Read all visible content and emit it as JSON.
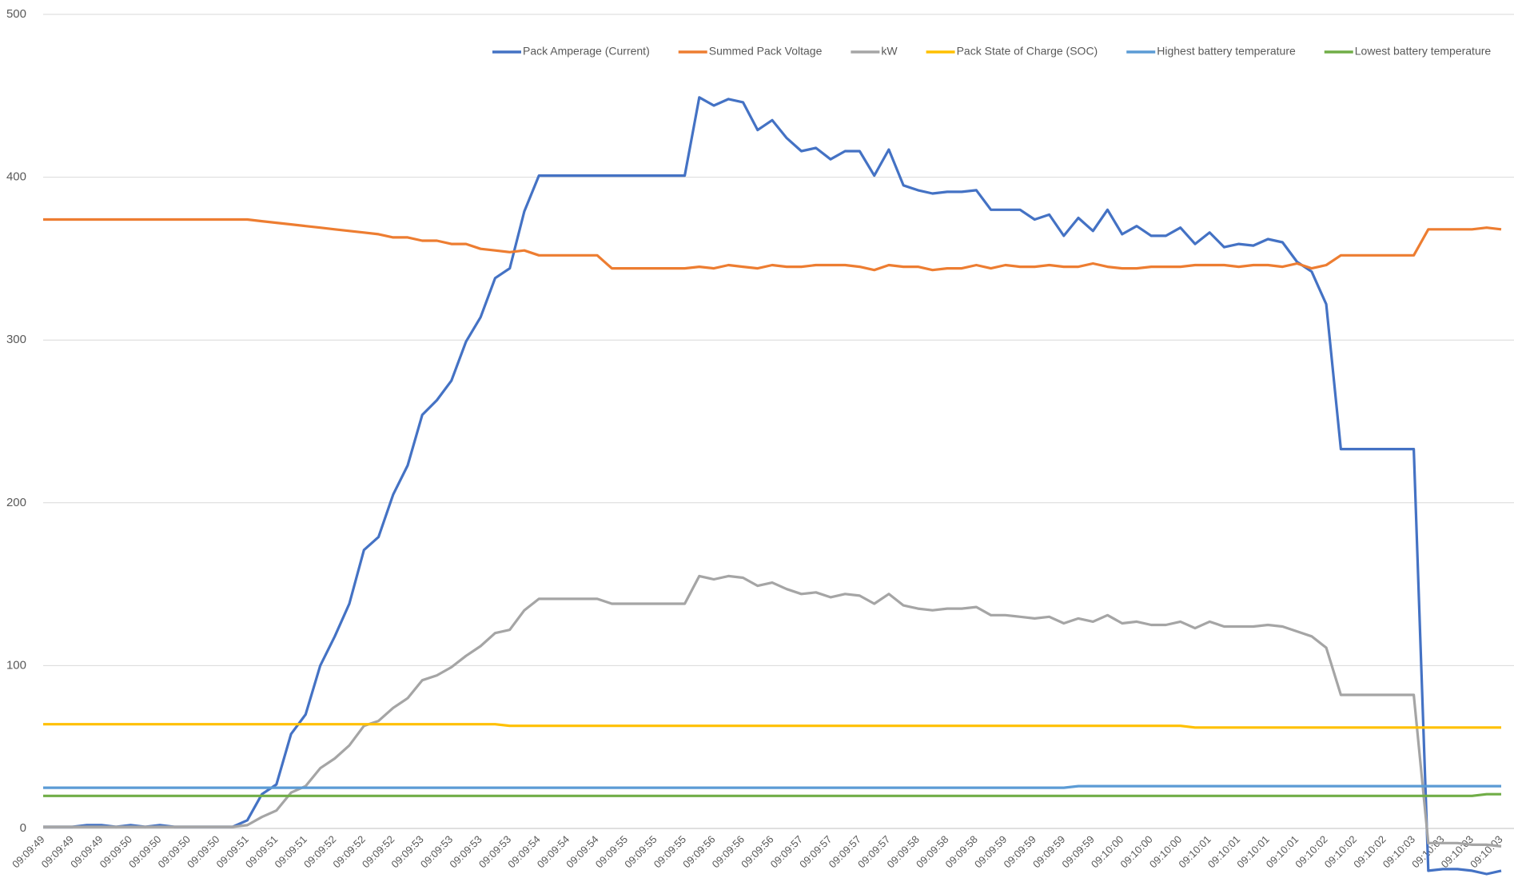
{
  "chart_data": {
    "type": "line",
    "categories": [
      "09:09:49",
      null,
      "09:09:49",
      null,
      "09:09:49",
      null,
      "09:09:50",
      null,
      "09:09:50",
      null,
      "09:09:50",
      null,
      "09:09:50",
      null,
      "09:09:51",
      null,
      "09:09:51",
      null,
      "09:09:51",
      null,
      "09:09:52",
      null,
      "09:09:52",
      null,
      "09:09:52",
      null,
      "09:09:53",
      null,
      "09:09:53",
      null,
      "09:09:53",
      null,
      "09:09:53",
      null,
      "09:09:54",
      null,
      "09:09:54",
      null,
      "09:09:54",
      null,
      "09:09:55",
      null,
      "09:09:55",
      null,
      "09:09:55",
      null,
      "09:09:56",
      null,
      "09:09:56",
      null,
      "09:09:56",
      null,
      "09:09:57",
      null,
      "09:09:57",
      null,
      "09:09:57",
      null,
      "09:09:57",
      null,
      "09:09:58",
      null,
      "09:09:58",
      null,
      "09:09:58",
      null,
      "09:09:59",
      null,
      "09:09:59",
      null,
      "09:09:59",
      null,
      "09:09:59",
      null,
      "09:10:00",
      null,
      "09:10:00",
      null,
      "09:10:00",
      null,
      "09:10:01",
      null,
      "09:10:01",
      null,
      "09:10:01",
      null,
      "09:10:01",
      null,
      "09:10:02",
      null,
      "09:10:02",
      null,
      "09:10:02",
      null,
      "09:10:03",
      null,
      "09:10:03",
      null,
      "09:10:03",
      null,
      "09:10:03"
    ],
    "series": [
      {
        "name": "Pack Amperage (Current)",
        "color": "#4472c4",
        "values": [
          1,
          1,
          1,
          2,
          2,
          1,
          2,
          1,
          2,
          1,
          1,
          1,
          1,
          1,
          5,
          21,
          27,
          58,
          70,
          100,
          118,
          138,
          171,
          179,
          205,
          223,
          254,
          263,
          275,
          299,
          314,
          338,
          344,
          379,
          401,
          401,
          401,
          401,
          401,
          401,
          401,
          401,
          401,
          401,
          401,
          449,
          444,
          448,
          446,
          429,
          435,
          424,
          416,
          418,
          411,
          416,
          416,
          401,
          417,
          395,
          392,
          390,
          391,
          391,
          392,
          380,
          380,
          380,
          374,
          377,
          364,
          375,
          367,
          380,
          365,
          370,
          364,
          364,
          369,
          359,
          366,
          357,
          359,
          358,
          362,
          360,
          348,
          342,
          322,
          233,
          233,
          233,
          233,
          233,
          233,
          -26,
          -25,
          -25,
          -26,
          -28,
          -26
        ]
      },
      {
        "name": "Summed Pack Voltage",
        "color": "#ed7d31",
        "values": [
          374,
          374,
          374,
          374,
          374,
          374,
          374,
          374,
          374,
          374,
          374,
          374,
          374,
          374,
          374,
          373,
          372,
          371,
          370,
          369,
          368,
          367,
          366,
          365,
          363,
          363,
          361,
          361,
          359,
          359,
          356,
          355,
          354,
          355,
          352,
          352,
          352,
          352,
          352,
          344,
          344,
          344,
          344,
          344,
          344,
          345,
          344,
          346,
          345,
          344,
          346,
          345,
          345,
          346,
          346,
          346,
          345,
          343,
          346,
          345,
          345,
          343,
          344,
          344,
          346,
          344,
          346,
          345,
          345,
          346,
          345,
          345,
          347,
          345,
          344,
          344,
          345,
          345,
          345,
          346,
          346,
          346,
          345,
          346,
          346,
          345,
          347,
          344,
          346,
          352,
          352,
          352,
          352,
          352,
          352,
          368,
          368,
          368,
          368,
          369,
          368
        ]
      },
      {
        "name": "kW",
        "color": "#a5a5a5",
        "values": [
          1,
          1,
          1,
          1,
          1,
          1,
          1,
          1,
          1,
          1,
          1,
          1,
          1,
          1,
          2,
          7,
          11,
          22,
          26,
          37,
          43,
          51,
          63,
          66,
          74,
          80,
          91,
          94,
          99,
          106,
          112,
          120,
          122,
          134,
          141,
          141,
          141,
          141,
          141,
          138,
          138,
          138,
          138,
          138,
          138,
          155,
          153,
          155,
          154,
          149,
          151,
          147,
          144,
          145,
          142,
          144,
          143,
          138,
          144,
          137,
          135,
          134,
          135,
          135,
          136,
          131,
          131,
          130,
          129,
          130,
          126,
          129,
          127,
          131,
          126,
          127,
          125,
          125,
          127,
          123,
          127,
          124,
          124,
          124,
          125,
          124,
          121,
          118,
          111,
          82,
          82,
          82,
          82,
          82,
          82,
          -9,
          -9,
          -9,
          -10,
          -10,
          -11
        ]
      },
      {
        "name": "Pack State of Charge (SOC)",
        "color": "#ffc000",
        "values": [
          64,
          64,
          64,
          64,
          64,
          64,
          64,
          64,
          64,
          64,
          64,
          64,
          64,
          64,
          64,
          64,
          64,
          64,
          64,
          64,
          64,
          64,
          64,
          64,
          64,
          64,
          64,
          64,
          64,
          64,
          64,
          64,
          63,
          63,
          63,
          63,
          63,
          63,
          63,
          63,
          63,
          63,
          63,
          63,
          63,
          63,
          63,
          63,
          63,
          63,
          63,
          63,
          63,
          63,
          63,
          63,
          63,
          63,
          63,
          63,
          63,
          63,
          63,
          63,
          63,
          63,
          63,
          63,
          63,
          63,
          63,
          63,
          63,
          63,
          63,
          63,
          63,
          63,
          63,
          62,
          62,
          62,
          62,
          62,
          62,
          62,
          62,
          62,
          62,
          62,
          62,
          62,
          62,
          62,
          62,
          62,
          62,
          62,
          62,
          62,
          62
        ]
      },
      {
        "name": "Highest battery temperature",
        "color": "#5b9bd5",
        "values": [
          25,
          25,
          25,
          25,
          25,
          25,
          25,
          25,
          25,
          25,
          25,
          25,
          25,
          25,
          25,
          25,
          25,
          25,
          25,
          25,
          25,
          25,
          25,
          25,
          25,
          25,
          25,
          25,
          25,
          25,
          25,
          25,
          25,
          25,
          25,
          25,
          25,
          25,
          25,
          25,
          25,
          25,
          25,
          25,
          25,
          25,
          25,
          25,
          25,
          25,
          25,
          25,
          25,
          25,
          25,
          25,
          25,
          25,
          25,
          25,
          25,
          25,
          25,
          25,
          25,
          25,
          25,
          25,
          25,
          25,
          25,
          26,
          26,
          26,
          26,
          26,
          26,
          26,
          26,
          26,
          26,
          26,
          26,
          26,
          26,
          26,
          26,
          26,
          26,
          26,
          26,
          26,
          26,
          26,
          26,
          26,
          26,
          26,
          26,
          26,
          26
        ]
      },
      {
        "name": "Lowest battery temperature",
        "color": "#70ad47",
        "values": [
          20,
          20,
          20,
          20,
          20,
          20,
          20,
          20,
          20,
          20,
          20,
          20,
          20,
          20,
          20,
          20,
          20,
          20,
          20,
          20,
          20,
          20,
          20,
          20,
          20,
          20,
          20,
          20,
          20,
          20,
          20,
          20,
          20,
          20,
          20,
          20,
          20,
          20,
          20,
          20,
          20,
          20,
          20,
          20,
          20,
          20,
          20,
          20,
          20,
          20,
          20,
          20,
          20,
          20,
          20,
          20,
          20,
          20,
          20,
          20,
          20,
          20,
          20,
          20,
          20,
          20,
          20,
          20,
          20,
          20,
          20,
          20,
          20,
          20,
          20,
          20,
          20,
          20,
          20,
          20,
          20,
          20,
          20,
          20,
          20,
          20,
          20,
          20,
          20,
          20,
          20,
          20,
          20,
          20,
          20,
          20,
          20,
          20,
          20,
          21,
          21
        ]
      }
    ],
    "ylim": [
      0,
      500
    ],
    "yticks": [
      0,
      100,
      200,
      300,
      400,
      500
    ],
    "grid": true,
    "legend": "top"
  }
}
